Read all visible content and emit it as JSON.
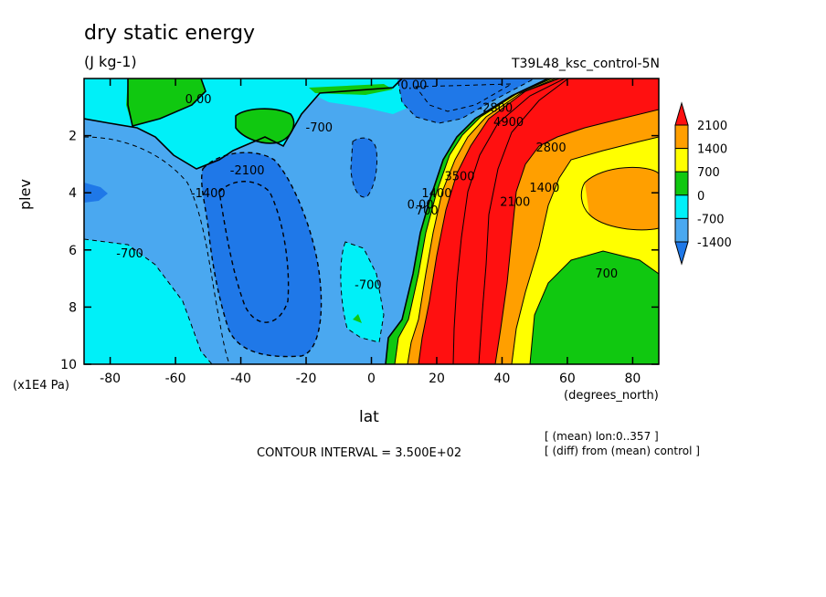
{
  "header": {
    "title": "dry static energy",
    "units": "(J kg-1)",
    "run_name": "T39L48_ksc_control-5N"
  },
  "footer": {
    "contour_interval": "CONTOUR INTERVAL = 3.500E+02",
    "note_lon": "[ (mean) lon:0..357 ]",
    "note_diff": "[ (diff) from (mean) control ]"
  },
  "chart_data": {
    "type": "heatmap",
    "title": "dry static energy",
    "subtitle": "(J kg-1)",
    "xlabel": "lat",
    "xunits": "(degrees_north)",
    "ylabel": "plev",
    "yunits": "(x1E4 Pa)",
    "xlim": [
      -88,
      88
    ],
    "ylim": [
      10,
      0
    ],
    "x_ticks": [
      -80,
      -60,
      -40,
      -20,
      0,
      20,
      40,
      60,
      80
    ],
    "x_tick_labels": [
      "-80",
      "-60",
      "-40",
      "-20",
      "0",
      "20",
      "40",
      "60",
      "80"
    ],
    "y_ticks": [
      2,
      4,
      6,
      8,
      10
    ],
    "y_tick_labels": [
      "2",
      "4",
      "6",
      "8",
      "10"
    ],
    "contour_interval": 350,
    "colorbar": {
      "levels": [
        -1400,
        -700,
        0,
        700,
        1400,
        2100
      ],
      "labels": [
        "-1400",
        "-700",
        "0",
        "700",
        "1400",
        "2100"
      ],
      "colors": [
        "#1f78e8",
        "#4aa8f0",
        "#00f0f8",
        "#10c810",
        "#ffff00",
        "#ff9f00",
        "#ff1010"
      ],
      "extend": "both"
    },
    "band_colors": {
      "very_negative": "#1f78e8",
      "negative": "#4aa8f0",
      "slightly_negative": "#00f0f8",
      "slightly_positive": "#10c810",
      "positive_low": "#ffff00",
      "positive_mid": "#ff9f00",
      "positive_high": "#ff1010"
    },
    "contour_labels": [
      {
        "text": "0.00",
        "lat": -53,
        "plev": 0.7
      },
      {
        "text": "0.00",
        "lat": 13,
        "plev": 0.2
      },
      {
        "text": "-700",
        "lat": -16,
        "plev": 1.7
      },
      {
        "text": "-2100",
        "lat": -38,
        "plev": 3.2
      },
      {
        "text": "-1400",
        "lat": -50,
        "plev": 4.0
      },
      {
        "text": "-700",
        "lat": -74,
        "plev": 6.1
      },
      {
        "text": "-700",
        "lat": -1,
        "plev": 7.2
      },
      {
        "text": "0.00",
        "lat": 15,
        "plev": 4.4
      },
      {
        "text": "700",
        "lat": 17,
        "plev": 4.6
      },
      {
        "text": "1400",
        "lat": 20,
        "plev": 4.0
      },
      {
        "text": "3500",
        "lat": 27,
        "plev": 3.4
      },
      {
        "text": "2800",
        "lat": 55,
        "plev": 2.4
      },
      {
        "text": "2100",
        "lat": 44,
        "plev": 4.3
      },
      {
        "text": "1400",
        "lat": 53,
        "plev": 3.8
      },
      {
        "text": "700",
        "lat": 72,
        "plev": 6.8
      },
      {
        "text": "-2800",
        "lat": 38,
        "plev": 1.0
      },
      {
        "text": "4900",
        "lat": 42,
        "plev": 1.5
      }
    ]
  }
}
